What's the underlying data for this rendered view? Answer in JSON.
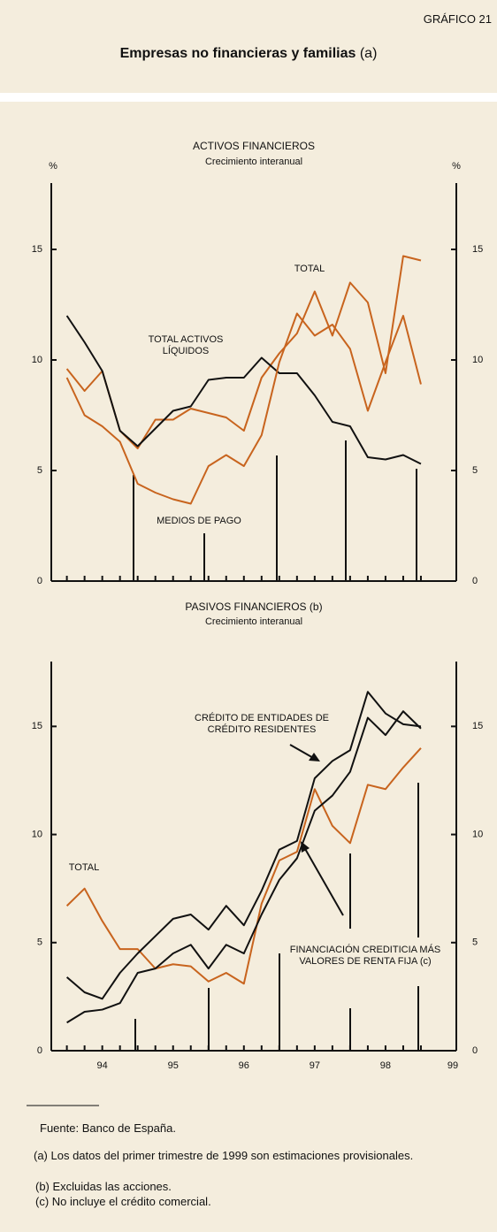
{
  "header": {
    "label": "GRÁFICO 21",
    "title": "Empresas no financieras y familias",
    "title_note": "(a)"
  },
  "chart_data": [
    {
      "type": "line",
      "title": "ACTIVOS FINANCIEROS",
      "subtitle": "Crecimiento interanual",
      "ylabel": "%",
      "x": [
        1994,
        1994.25,
        1994.5,
        1994.75,
        1995,
        1995.25,
        1995.5,
        1995.75,
        1996,
        1996.25,
        1996.5,
        1996.75,
        1997,
        1997.25,
        1997.5,
        1997.75,
        1998,
        1998.25,
        1998.5,
        1998.75,
        1999
      ],
      "xlim": [
        1993.78,
        1999.5
      ],
      "ylim": [
        0,
        18
      ],
      "yticks": [
        0,
        5,
        10,
        15
      ],
      "series": [
        {
          "name": "TOTAL",
          "color": "#c8641e",
          "values": [
            9.6,
            8.6,
            9.5,
            6.8,
            6.0,
            7.3,
            7.3,
            7.8,
            7.6,
            7.4,
            6.8,
            9.2,
            10.3,
            11.2,
            13.1,
            11.1,
            13.5,
            12.6,
            9.4,
            14.7,
            14.5
          ]
        },
        {
          "name": "TOTAL ACTIVOS LÍQUIDOS",
          "color": "#111111",
          "values": [
            12.0,
            10.8,
            9.5,
            6.8,
            6.1,
            6.9,
            7.7,
            7.9,
            9.1,
            9.2,
            9.2,
            10.1,
            9.4,
            9.4,
            8.4,
            7.2,
            7.0,
            5.6,
            5.5,
            5.7,
            5.3
          ]
        },
        {
          "name": "MEDIOS DE PAGO",
          "color": "#c8641e",
          "values": [
            9.2,
            7.5,
            7.0,
            6.3,
            4.4,
            4.0,
            3.7,
            3.5,
            5.2,
            5.7,
            5.2,
            6.6,
            9.9,
            12.1,
            11.1,
            11.6,
            10.5,
            7.7,
            9.9,
            12.0,
            8.9
          ]
        }
      ]
    },
    {
      "type": "line",
      "title": "PASIVOS FINANCIEROS (b)",
      "subtitle": "Crecimiento interanual",
      "x": [
        1994,
        1994.25,
        1994.5,
        1994.75,
        1995,
        1995.25,
        1995.5,
        1995.75,
        1996,
        1996.25,
        1996.5,
        1996.75,
        1997,
        1997.25,
        1997.5,
        1997.75,
        1998,
        1998.25,
        1998.5,
        1998.75,
        1999
      ],
      "xlim": [
        1993.78,
        1999.5
      ],
      "xticks": [
        {
          "value": 1994.5,
          "label": "94"
        },
        {
          "value": 1995.5,
          "label": "95"
        },
        {
          "value": 1996.5,
          "label": "96"
        },
        {
          "value": 1997.5,
          "label": "97"
        },
        {
          "value": 1998.5,
          "label": "98"
        },
        {
          "value": 1999.45,
          "label": "99"
        }
      ],
      "ylim": [
        0,
        18
      ],
      "yticks": [
        0,
        5,
        10,
        15
      ],
      "series": [
        {
          "name": "TOTAL",
          "color": "#c8641e",
          "values": [
            6.7,
            7.5,
            6.0,
            4.7,
            4.7,
            3.8,
            4.0,
            3.9,
            3.2,
            3.6,
            3.1,
            6.8,
            8.8,
            9.2,
            12.1,
            10.4,
            9.6,
            12.3,
            12.1,
            13.1,
            14.0
          ]
        },
        {
          "name": "CRÉDITO DE ENTIDADES DE CRÉDITO RESIDENTES",
          "color": "#111111",
          "values": [
            3.4,
            2.7,
            2.4,
            3.6,
            4.5,
            5.3,
            6.1,
            6.3,
            5.6,
            6.7,
            5.8,
            7.4,
            9.3,
            9.7,
            12.6,
            13.4,
            13.9,
            16.6,
            15.6,
            15.1,
            15.0
          ]
        },
        {
          "name": "FINANCIACIÓN CREDITICIA MÁS VALORES DE RENTA FIJA (c)",
          "color": "#111111",
          "values": [
            1.3,
            1.8,
            1.9,
            2.2,
            3.6,
            3.8,
            4.5,
            4.9,
            3.8,
            4.9,
            4.5,
            6.3,
            7.9,
            8.9,
            11.1,
            11.8,
            12.9,
            15.4,
            14.6,
            15.7,
            14.9
          ]
        }
      ]
    }
  ],
  "footer": {
    "source": "Fuente:  Banco de España.",
    "notes": [
      "(a)   Los datos del primer trimestre de 1999 son estimaciones provisionales.",
      "(b)   Excluidas las acciones.",
      "(c)   No incluye el crédito comercial."
    ]
  }
}
